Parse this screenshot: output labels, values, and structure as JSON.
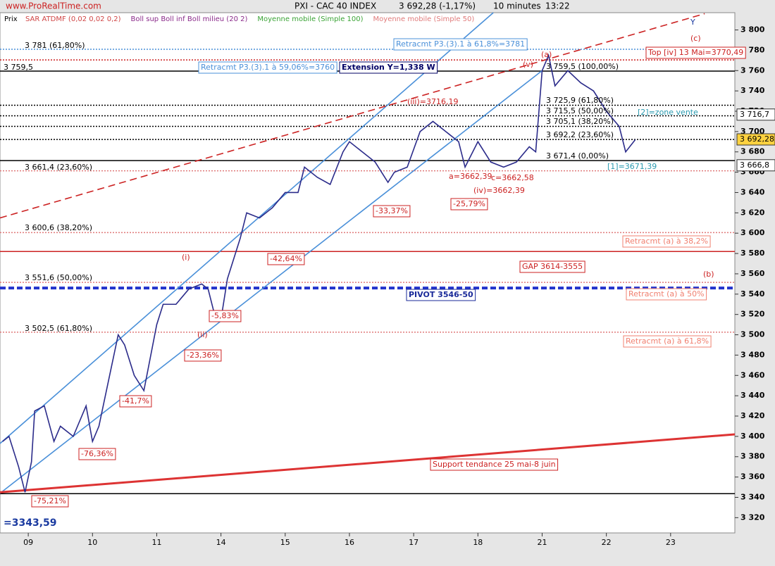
{
  "header": {
    "site": "www.ProRealTime.com",
    "instrument": "PXI - CAC 40 INDEX",
    "last": "3 692,28 (-1,17%)",
    "period": "10 minutes",
    "time": "13:22",
    "price_label": "Prix"
  },
  "chart_data": {
    "type": "line",
    "indicators": [
      {
        "name": "SAR ATDMF (0,02 0,02 0,2)",
        "color": "#d04545"
      },
      {
        "name": "Boll sup Boll inf Boll milieu (20 2)",
        "color": "#8a2a8a"
      },
      {
        "name": "Moyenne mobile (Simple 100)",
        "color": "#3aa335"
      },
      {
        "name": "Moyenne mobile (Simple 50)",
        "color": "#e07a7a"
      }
    ],
    "xlim": [
      -0.44,
      11
    ],
    "ylim": [
      3305,
      3817
    ],
    "xticks": [
      {
        "value": 0,
        "label": "09"
      },
      {
        "value": 1,
        "label": "10"
      },
      {
        "value": 2,
        "label": "11"
      },
      {
        "value": 3,
        "label": "14"
      },
      {
        "value": 4,
        "label": "15"
      },
      {
        "value": 5,
        "label": "16"
      },
      {
        "value": 6,
        "label": "17"
      },
      {
        "value": 7,
        "label": "18"
      },
      {
        "value": 8,
        "label": "21"
      },
      {
        "value": 9,
        "label": "22"
      },
      {
        "value": 10,
        "label": "23"
      }
    ],
    "yticks": [
      {
        "value": 3320,
        "label": "3 320"
      },
      {
        "value": 3340,
        "label": "3 340"
      },
      {
        "value": 3360,
        "label": "3 360"
      },
      {
        "value": 3380,
        "label": "3 380"
      },
      {
        "value": 3400,
        "label": "3 400"
      },
      {
        "value": 3420,
        "label": "3 420"
      },
      {
        "value": 3440,
        "label": "3 440"
      },
      {
        "value": 3460,
        "label": "3 460"
      },
      {
        "value": 3480,
        "label": "3 480"
      },
      {
        "value": 3500,
        "label": "3 500"
      },
      {
        "value": 3520,
        "label": "3 520"
      },
      {
        "value": 3540,
        "label": "3 540"
      },
      {
        "value": 3560,
        "label": "3 560"
      },
      {
        "value": 3580,
        "label": "3 580"
      },
      {
        "value": 3600,
        "label": "3 600"
      },
      {
        "value": 3620,
        "label": "3 620"
      },
      {
        "value": 3640,
        "label": "3 640"
      },
      {
        "value": 3660,
        "label": "3 660"
      },
      {
        "value": 3680,
        "label": "3 680"
      },
      {
        "value": 3700,
        "label": "3 700"
      },
      {
        "value": 3720,
        "label": "3 720"
      },
      {
        "value": 3740,
        "label": "3 740"
      },
      {
        "value": 3760,
        "label": "3 760"
      },
      {
        "value": 3780,
        "label": "3 780"
      },
      {
        "value": 3800,
        "label": "3 800"
      }
    ],
    "x": [
      -0.4,
      -0.3,
      -0.15,
      -0.05,
      0.05,
      0.1,
      0.25,
      0.4,
      0.5,
      0.7,
      0.9,
      1.0,
      1.1,
      1.3,
      1.4,
      1.5,
      1.65,
      1.8,
      2.0,
      2.1,
      2.3,
      2.5,
      2.7,
      2.8,
      2.9,
      3.0,
      3.1,
      3.3,
      3.4,
      3.6,
      3.8,
      4.0,
      4.2,
      4.3,
      4.5,
      4.7,
      4.9,
      5.0,
      5.2,
      5.4,
      5.6,
      5.7,
      5.9,
      6.1,
      6.3,
      6.5,
      6.7,
      6.8,
      7.0,
      7.2,
      7.4,
      7.6,
      7.8,
      7.9,
      8.0,
      8.1,
      8.2,
      8.4,
      8.6,
      8.8,
      9.0,
      9.2,
      9.3,
      9.45
    ],
    "series": [
      {
        "name": "Prix",
        "color": "#2b2b8a",
        "values": [
          3395,
          3400,
          3370,
          3345,
          3375,
          3425,
          3430,
          3395,
          3410,
          3400,
          3430,
          3395,
          3410,
          3470,
          3500,
          3490,
          3460,
          3445,
          3510,
          3530,
          3530,
          3545,
          3550,
          3545,
          3520,
          3515,
          3555,
          3595,
          3620,
          3615,
          3625,
          3640,
          3640,
          3665,
          3655,
          3648,
          3680,
          3690,
          3680,
          3670,
          3650,
          3660,
          3665,
          3700,
          3710,
          3700,
          3690,
          3665,
          3690,
          3670,
          3665,
          3670,
          3685,
          3680,
          3760,
          3775,
          3745,
          3760,
          3748,
          3740,
          3720,
          3705,
          3680,
          3692
        ]
      }
    ],
    "levels": [
      {
        "value": 3781,
        "color": "#4a90d9",
        "dash": "2,2"
      },
      {
        "value": 3770.49,
        "color": "#cc2222",
        "dash": "2,2"
      },
      {
        "value": 3759.5,
        "color": "#000000",
        "dash": ""
      },
      {
        "value": 3725.9,
        "color": "#000000",
        "dash": "2,2"
      },
      {
        "value": 3715.5,
        "color": "#000000",
        "dash": "2,2"
      },
      {
        "value": 3705.1,
        "color": "#000000",
        "dash": "2,2"
      },
      {
        "value": 3692.2,
        "color": "#000000",
        "dash": "2,2"
      },
      {
        "value": 3671.4,
        "color": "#000000",
        "dash": ""
      },
      {
        "value": 3661.4,
        "color": "#e07a7a",
        "dash": "2,2"
      },
      {
        "value": 3600.6,
        "color": "#e07a7a",
        "dash": "2,2"
      },
      {
        "value": 3582,
        "color": "#cc2222",
        "dash": ""
      },
      {
        "value": 3551.6,
        "color": "#e07a7a",
        "dash": "2,2"
      },
      {
        "value": 3546,
        "color": "#2233cc",
        "dash": "8,4"
      },
      {
        "value": 3502.5,
        "color": "#e07a7a",
        "dash": "2,2"
      },
      {
        "value": 3343.59,
        "color": "#000000",
        "dash": ""
      }
    ],
    "trendlines": [
      {
        "x": [
          -0.44,
          7.24
        ],
        "values": [
          3393,
          3817
        ],
        "color": "#4a90d9",
        "dash": ""
      },
      {
        "x": [
          -0.44,
          8.0
        ],
        "values": [
          3344,
          3760
        ],
        "color": "#4a90d9",
        "dash": ""
      },
      {
        "x": [
          -0.44,
          10.53
        ],
        "values": [
          3615,
          3816
        ],
        "color": "#cc2222",
        "dash": "10,6"
      },
      {
        "x": [
          -0.44,
          11
        ],
        "values": [
          3345,
          3402
        ],
        "color": "#dd3333",
        "dash": ""
      }
    ],
    "price_boxes": [
      {
        "value": 3716.7,
        "label": "3 716,7",
        "fill": "#ffffff"
      },
      {
        "value": 3692.28,
        "label": "3 692,28",
        "fill": "#ffd23f"
      },
      {
        "value": 3666.8,
        "label": "3 666,8",
        "fill": "#ffffff"
      }
    ],
    "annotations": [
      {
        "text": "Retracmt P3.(3).1 à 61,8%=3781",
        "color": "#4a90d9",
        "box": true
      },
      {
        "text": "Retracmt P3.(3).1 à 59,06%=3760",
        "color": "#4a90d9",
        "box": true
      },
      {
        "text": "Extension Y=1,338 W",
        "color": "#000066",
        "box": true
      },
      {
        "text": "Top [iv] 13 Mai=3770,49",
        "color": "#cc2222",
        "box": true
      },
      {
        "text": "(c)",
        "color": "#cc2222",
        "box": false
      },
      {
        "text": "Y",
        "color": "#1a3aa0",
        "box": false
      },
      {
        "text": "(a)",
        "color": "#cc2222",
        "box": false
      },
      {
        "text": "3 759,5 (100,00%)",
        "color": "#000000",
        "box": false
      },
      {
        "text": "3 725,9 (61,80%)",
        "color": "#000000",
        "box": false
      },
      {
        "text": "3 715,5 (50,00%)",
        "color": "#000000",
        "box": false
      },
      {
        "text": "3 705,1 (38,20%)",
        "color": "#000000",
        "box": false
      },
      {
        "text": "3 692,2 (23,60%)",
        "color": "#000000",
        "box": false
      },
      {
        "text": "3 671,4 (0,00%)",
        "color": "#000000",
        "box": false
      },
      {
        "text": "[2]=zone vente",
        "color": "#2a9ab0",
        "box": false
      },
      {
        "text": "[1]=3671,39",
        "color": "#2a9ab0",
        "box": false
      },
      {
        "text": "(iii)=3716,19",
        "color": "#cc2222",
        "box": false
      },
      {
        "text": "a=3662,39",
        "color": "#cc2222",
        "box": false
      },
      {
        "text": "c=3662,58",
        "color": "#cc2222",
        "box": false
      },
      {
        "text": "(iv)=3662,39",
        "color": "#cc2222",
        "box": false
      },
      {
        "text": "-33,37%",
        "color": "#cc2222",
        "box": true
      },
      {
        "text": "-25,79%",
        "color": "#cc2222",
        "box": true
      },
      {
        "text": "-42,64%",
        "color": "#cc2222",
        "box": true
      },
      {
        "text": "-5,83%",
        "color": "#cc2222",
        "box": true
      },
      {
        "text": "-23,36%",
        "color": "#cc2222",
        "box": true
      },
      {
        "text": "-41,7%",
        "color": "#cc2222",
        "box": true
      },
      {
        "text": "-76,36%",
        "color": "#cc2222",
        "box": true
      },
      {
        "text": "-75,21%",
        "color": "#cc2222",
        "box": true
      },
      {
        "text": "Retracmt (a) à 38,2%",
        "color": "#f08070",
        "box": true
      },
      {
        "text": "Retracmt (a) à 50%",
        "color": "#f08070",
        "box": true
      },
      {
        "text": "Retracmt (a) à 61,8%",
        "color": "#f08070",
        "box": true
      },
      {
        "text": "GAP 3614-3555",
        "color": "#cc2222",
        "box": true
      },
      {
        "text": "PIVOT 3546-50",
        "color": "#1a2a99",
        "box": true
      },
      {
        "text": "(b)",
        "color": "#cc2222",
        "box": false
      },
      {
        "text": "Support tendance 25 mai-8 juin",
        "color": "#cc2222",
        "box": true
      },
      {
        "text": "=3343,59",
        "color": "#1a3aa0",
        "box": false
      },
      {
        "text": "3 781 (61,80%)",
        "color": "#000000",
        "box": false
      },
      {
        "text": "3 759,5",
        "color": "#000000",
        "box": false
      },
      {
        "text": "3 661,4 (23,60%)",
        "color": "#000000",
        "box": false
      },
      {
        "text": "3 600,6 (38,20%)",
        "color": "#000000",
        "box": false
      },
      {
        "text": "3 551,6 (50,00%)",
        "color": "#000000",
        "box": false
      },
      {
        "text": "3 502,5 (61,80%)",
        "color": "#000000",
        "box": false
      },
      {
        "text": "(i)",
        "color": "#cc2222",
        "box": false
      },
      {
        "text": "(ii)",
        "color": "#cc2222",
        "box": false
      },
      {
        "text": "(v)",
        "color": "#cc2222",
        "box": false
      }
    ]
  }
}
